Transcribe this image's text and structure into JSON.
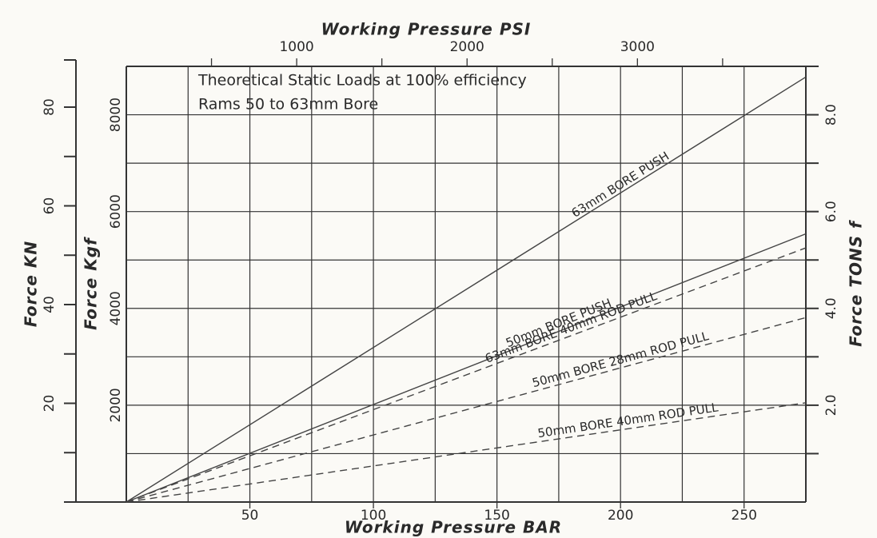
{
  "chart_data": {
    "type": "line",
    "title": "Theoretical Static Loads at 100% efficiency",
    "subtitle": "Rams 50 to 63mm Bore",
    "xlabel": "Working Pressure BAR",
    "x2label": "Working Pressure PSI",
    "ylabel": "Force Kgf",
    "y2label": "Force TONS f",
    "y3label": "Force KN",
    "x": [
      0,
      275
    ],
    "xlim": [
      0,
      275
    ],
    "xticks": [
      50,
      100,
      150,
      200,
      250
    ],
    "xgrid": [
      0,
      25,
      50,
      75,
      100,
      125,
      150,
      175,
      200,
      225,
      250,
      275
    ],
    "x2ticks": [
      1000,
      2000,
      3000
    ],
    "x2minor": [
      500,
      1500,
      2500,
      3500
    ],
    "ylim": [
      0,
      9000
    ],
    "yticks": [
      2000,
      4000,
      6000,
      8000
    ],
    "ygrid": [
      0,
      1000,
      2000,
      3000,
      4000,
      5000,
      6000,
      7000,
      8000,
      9000
    ],
    "y2ticks": [
      {
        "value": 2,
        "label": "2.0"
      },
      {
        "value": 4,
        "label": "4.0"
      },
      {
        "value": 6,
        "label": "6.0"
      },
      {
        "value": 8,
        "label": "8.0"
      }
    ],
    "y2minor": [
      1,
      3,
      5,
      7,
      9
    ],
    "y3ticks": [
      20,
      40,
      60,
      80
    ],
    "y3minor": [
      0,
      10,
      30,
      50,
      70
    ],
    "grid": true,
    "series": [
      {
        "name": "63mm BORE PUSH",
        "color": "#444",
        "dashed": false,
        "values": [
          0,
          8780
        ]
      },
      {
        "name": "50mm BORE PUSH",
        "color": "#444",
        "dashed": false,
        "values": [
          0,
          5540
        ]
      },
      {
        "name": "63mm BORE 40mm ROD PULL",
        "color": "#444",
        "dashed": true,
        "values": [
          0,
          5250
        ]
      },
      {
        "name": "50mm BORE 28mm ROD PULL",
        "color": "#444",
        "dashed": true,
        "values": [
          0,
          3810
        ]
      },
      {
        "name": "50mm BORE 40mm ROD PULL",
        "color": "#444",
        "dashed": true,
        "values": [
          0,
          2050
        ]
      }
    ]
  }
}
